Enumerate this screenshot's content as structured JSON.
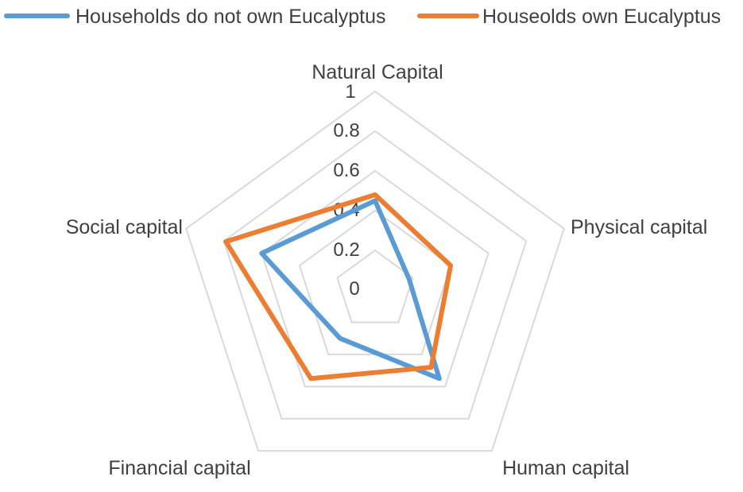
{
  "chart_data": {
    "type": "radar",
    "title": "",
    "categories": [
      "Natural Capital",
      "Physical capital",
      "Human capital",
      "Financial capital",
      "Social capital"
    ],
    "series": [
      {
        "name": "Households do not own Eucalyptus",
        "color": "#5b9bd5",
        "values": [
          0.45,
          0.18,
          0.55,
          0.3,
          0.6
        ]
      },
      {
        "name": "Houseolds own Eucalyptus",
        "color": "#ed7d31",
        "values": [
          0.48,
          0.4,
          0.48,
          0.55,
          0.79
        ]
      }
    ],
    "rlim": [
      0,
      1
    ],
    "ticks": [
      "0",
      "0.2",
      "0.4",
      "0.6",
      "0.8",
      "1"
    ],
    "tick_values": [
      0,
      0.2,
      0.4,
      0.6,
      0.8,
      1
    ],
    "legend_position": "top",
    "grid": true
  }
}
